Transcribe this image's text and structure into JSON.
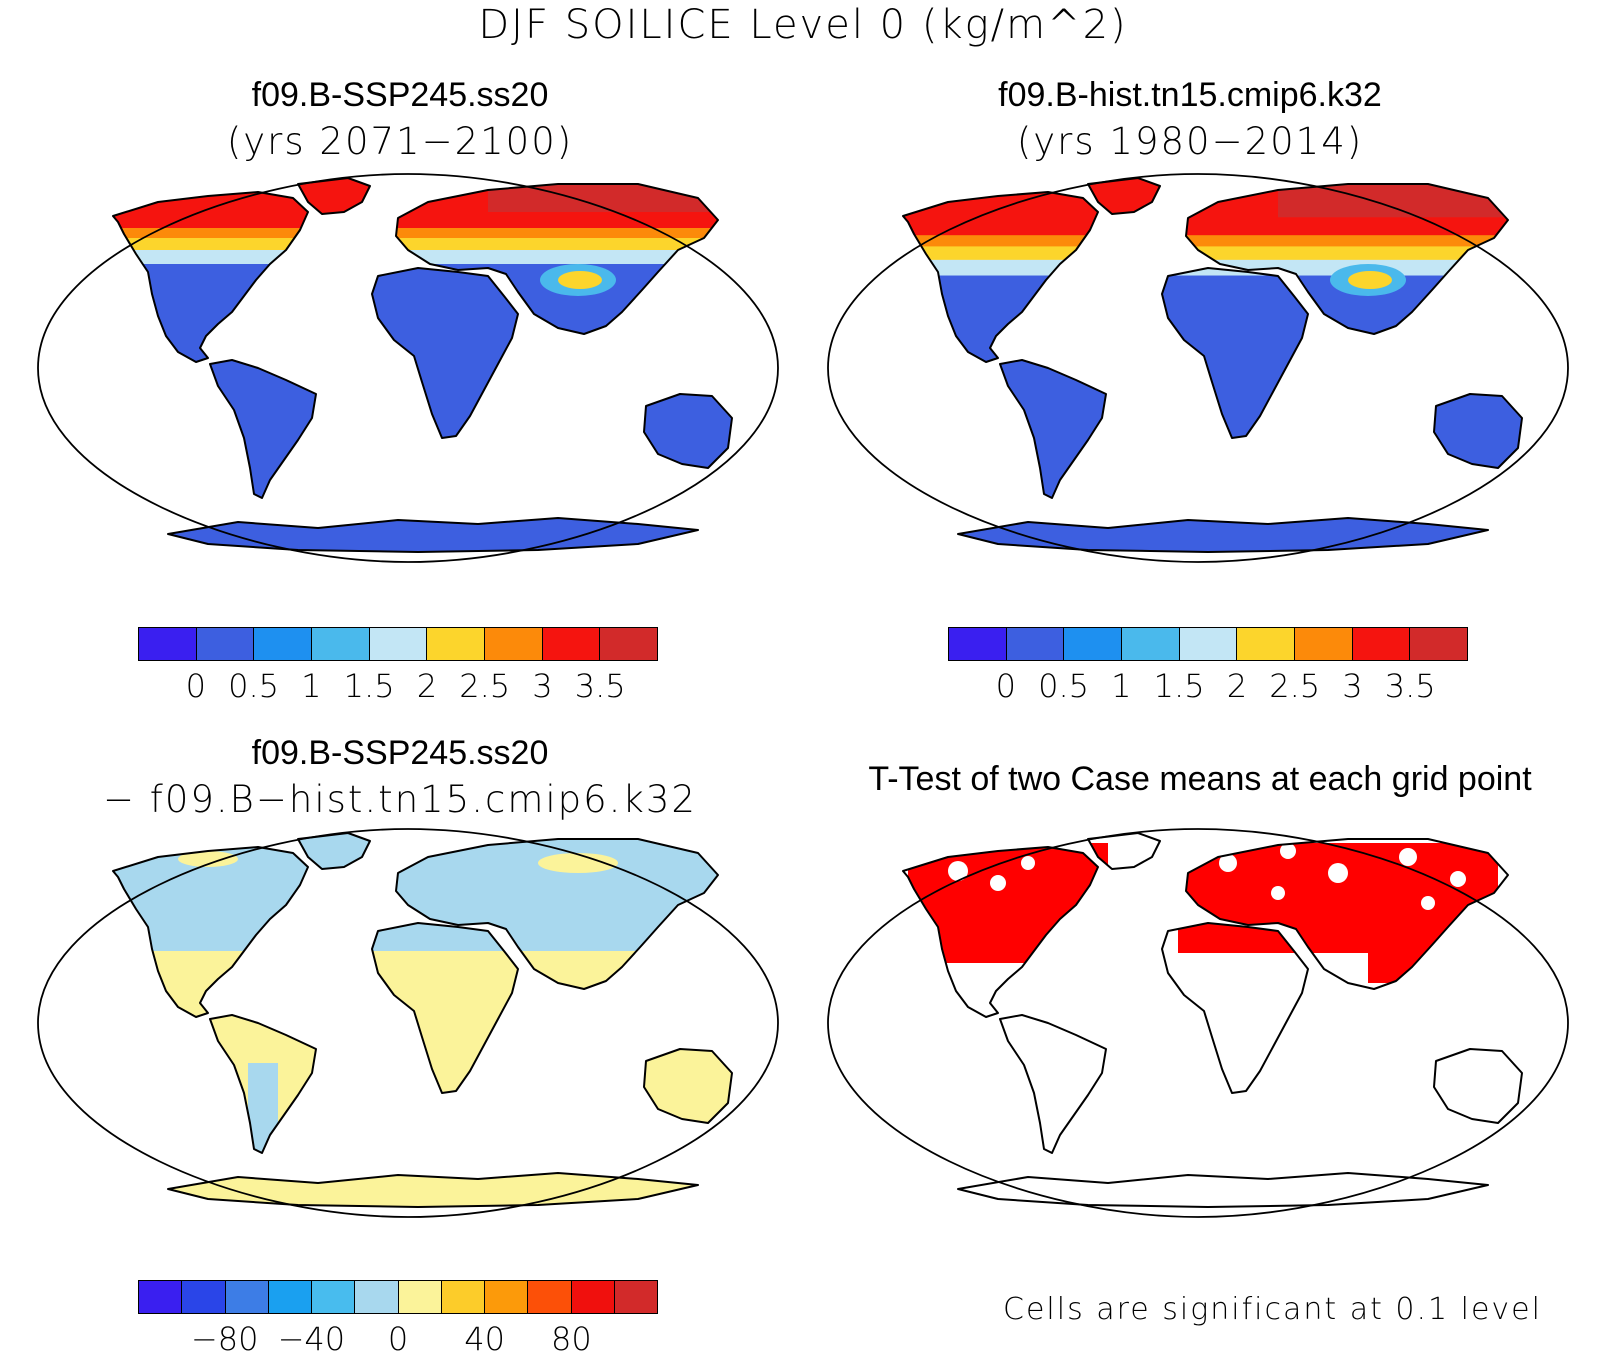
{
  "title": "DJF SOILICE Level 0 (kg/m^2)",
  "panels": [
    {
      "id": "case1",
      "title": "f09.B-SSP245.ss20",
      "subtitle": "(yrs 2071−2100)",
      "colorbar": {
        "colors": [
          "#3a1ff0",
          "#3d5fe0",
          "#1e90f0",
          "#4ab9ec",
          "#c3e6f5",
          "#fcd52c",
          "#fc8a0a",
          "#f5140f",
          "#d22a2a"
        ],
        "ticks": [
          "0",
          "0.5",
          "1",
          "1.5",
          "2",
          "2.5",
          "3",
          "3.5"
        ]
      }
    },
    {
      "id": "case2",
      "title": "f09.B-hist.tn15.cmip6.k32",
      "subtitle": "(yrs 1980−2014)",
      "colorbar": {
        "colors": [
          "#3a1ff0",
          "#3d5fe0",
          "#1e90f0",
          "#4ab9ec",
          "#c3e6f5",
          "#fcd52c",
          "#fc8a0a",
          "#f5140f",
          "#d22a2a"
        ],
        "ticks": [
          "0",
          "0.5",
          "1",
          "1.5",
          "2",
          "2.5",
          "3",
          "3.5"
        ]
      }
    },
    {
      "id": "diff",
      "title": "f09.B-SSP245.ss20",
      "subtitle": "− f09.B−hist.tn15.cmip6.k32",
      "colorbar": {
        "colors": [
          "#3a1ff0",
          "#2a45e8",
          "#3d7de6",
          "#1aa0f0",
          "#48bcee",
          "#a8d8ee",
          "#fbf39a",
          "#fccc2a",
          "#fc9a0a",
          "#fc5008",
          "#f0100d",
          "#d22a2a"
        ],
        "ticks": [
          "−80",
          "−40",
          "0",
          "40",
          "80"
        ]
      }
    },
    {
      "id": "ttest",
      "title": "T-Test of two Case means at each grid point",
      "note": "Cells are significant at 0.1 level",
      "significant_color": "#ff0000"
    }
  ],
  "map_colors": {
    "low_land": "#3d5fe0",
    "diff_pos": "#fbf39a",
    "diff_neg": "#a8d8ee"
  }
}
